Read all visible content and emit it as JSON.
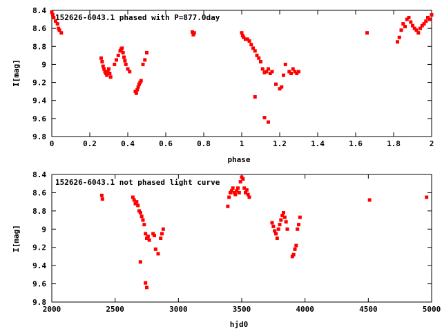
{
  "chart_data": [
    {
      "type": "scatter",
      "title": "152626-6043.1 phased with P=877.0day",
      "xlabel": "phase",
      "ylabel": "I[mag]",
      "xlim": [
        0,
        2
      ],
      "ylim": [
        9.8,
        8.4
      ],
      "y_inverted": true,
      "x_ticks": [
        "0",
        "0.2",
        "0.4",
        "0.6",
        "0.8",
        "1",
        "1.2",
        "1.4",
        "1.6",
        "1.8",
        "2"
      ],
      "y_ticks": [
        "8.4",
        "8.6",
        "8.8",
        "9",
        "9.2",
        "9.4",
        "9.6",
        "9.8"
      ],
      "marker_color": "#ff0000",
      "x": [
        0.0,
        0.005,
        0.01,
        0.02,
        0.03,
        0.035,
        0.04,
        0.05,
        0.26,
        0.265,
        0.27,
        0.275,
        0.28,
        0.285,
        0.29,
        0.295,
        0.3,
        0.305,
        0.31,
        0.33,
        0.34,
        0.35,
        0.36,
        0.365,
        0.37,
        0.375,
        0.38,
        0.385,
        0.39,
        0.4,
        0.41,
        0.44,
        0.445,
        0.45,
        0.455,
        0.46,
        0.465,
        0.47,
        0.48,
        0.49,
        0.5,
        0.74,
        0.745,
        0.75,
        1.0,
        1.005,
        1.01,
        1.02,
        1.03,
        1.04,
        1.05,
        1.06,
        1.07,
        1.08,
        1.09,
        1.1,
        1.11,
        1.12,
        1.13,
        1.14,
        1.07,
        1.14,
        1.12,
        1.15,
        1.16,
        1.18,
        1.2,
        1.21,
        1.22,
        1.23,
        1.25,
        1.26,
        1.27,
        1.28,
        1.29,
        1.3,
        1.66,
        1.82,
        1.83,
        1.84,
        1.85,
        1.86,
        1.87,
        1.88,
        1.89,
        1.9,
        1.91,
        1.92,
        1.93,
        1.94,
        1.95,
        1.96,
        1.97,
        1.98,
        1.99,
        2.0
      ],
      "y": [
        8.42,
        8.45,
        8.48,
        8.52,
        8.55,
        8.6,
        8.62,
        8.65,
        8.93,
        8.97,
        9.02,
        9.05,
        9.08,
        9.1,
        9.12,
        9.08,
        9.05,
        9.1,
        9.14,
        9.0,
        8.95,
        8.9,
        8.85,
        8.83,
        8.82,
        8.87,
        8.92,
        8.96,
        9.0,
        9.05,
        9.08,
        9.3,
        9.32,
        9.28,
        9.25,
        9.22,
        9.2,
        9.18,
        9.0,
        8.95,
        8.87,
        8.64,
        8.67,
        8.65,
        8.65,
        8.68,
        8.7,
        8.72,
        8.72,
        8.74,
        8.78,
        8.82,
        8.85,
        8.9,
        8.93,
        8.97,
        9.05,
        9.09,
        9.08,
        9.05,
        9.36,
        9.64,
        9.59,
        9.1,
        9.08,
        9.22,
        9.27,
        9.25,
        9.12,
        9.0,
        9.08,
        9.1,
        9.05,
        9.08,
        9.1,
        9.08,
        8.65,
        8.75,
        8.7,
        8.62,
        8.55,
        8.58,
        8.5,
        8.48,
        8.53,
        8.57,
        8.6,
        8.62,
        8.65,
        8.6,
        8.57,
        8.55,
        8.52,
        8.48,
        8.5,
        8.45
      ]
    },
    {
      "type": "scatter",
      "title": "152626-6043.1 not phased light curve",
      "xlabel": "hjd0",
      "ylabel": "I[mag]",
      "xlim": [
        2000,
        5000
      ],
      "ylim": [
        9.8,
        8.4
      ],
      "y_inverted": true,
      "x_ticks": [
        "2000",
        "2500",
        "3000",
        "3500",
        "4000",
        "4500",
        "5000"
      ],
      "y_ticks": [
        "8.4",
        "8.6",
        "8.8",
        "9",
        "9.2",
        "9.4",
        "9.6",
        "9.8"
      ],
      "marker_color": "#ff0000",
      "x": [
        2395,
        2400,
        2640,
        2650,
        2660,
        2670,
        2680,
        2690,
        2700,
        2710,
        2720,
        2730,
        2740,
        2750,
        2760,
        2770,
        2800,
        2810,
        2820,
        2840,
        2860,
        2870,
        2880,
        2700,
        2740,
        2750,
        3390,
        3400,
        3410,
        3420,
        3430,
        3440,
        3450,
        3460,
        3470,
        3480,
        3490,
        3500,
        3510,
        3520,
        3530,
        3540,
        3550,
        3560,
        3740,
        3750,
        3760,
        3770,
        3780,
        3790,
        3800,
        3810,
        3820,
        3830,
        3840,
        3850,
        3860,
        3900,
        3910,
        3920,
        3930,
        3940,
        3950,
        3960,
        4510,
        4960
      ],
      "y": [
        8.63,
        8.67,
        8.65,
        8.68,
        8.72,
        8.7,
        8.74,
        8.8,
        8.82,
        8.86,
        8.9,
        8.95,
        9.05,
        9.1,
        9.08,
        9.12,
        9.05,
        9.07,
        9.22,
        9.27,
        9.1,
        9.05,
        9.0,
        9.36,
        9.59,
        9.64,
        8.75,
        8.65,
        8.6,
        8.58,
        8.55,
        8.6,
        8.62,
        8.58,
        8.55,
        8.6,
        8.48,
        8.43,
        8.45,
        8.55,
        8.6,
        8.57,
        8.62,
        8.65,
        8.93,
        8.97,
        9.02,
        9.05,
        9.1,
        9.0,
        8.95,
        8.9,
        8.85,
        8.82,
        8.87,
        8.92,
        9.0,
        9.3,
        9.28,
        9.22,
        9.18,
        9.0,
        8.95,
        8.87,
        8.68,
        8.65
      ]
    }
  ]
}
